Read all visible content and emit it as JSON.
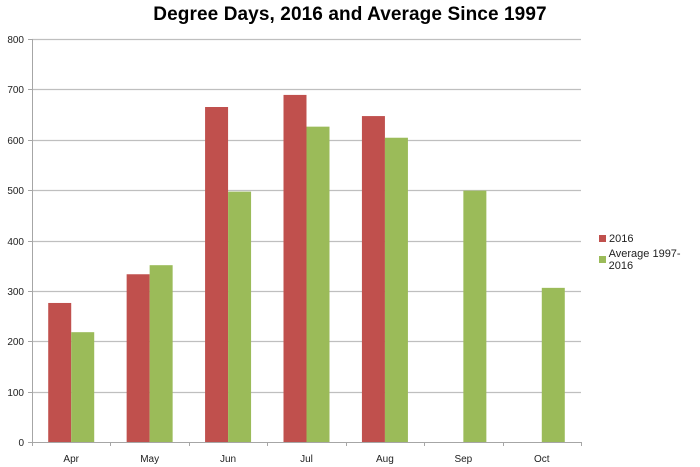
{
  "chart_data": {
    "type": "bar",
    "title": "Degree Days, 2016 and Average Since 1997",
    "xlabel": "",
    "ylabel": "",
    "categories": [
      "Apr",
      "May",
      "Jun",
      "Jul",
      "Aug",
      "Sep",
      "Oct"
    ],
    "series": [
      {
        "name": "2016",
        "color": "#C0504D",
        "values": [
          276,
          333,
          665,
          689,
          647,
          null,
          null
        ]
      },
      {
        "name": "Average 1997-2016",
        "color": "#9BBB59",
        "values": [
          218,
          351,
          497,
          626,
          604,
          499,
          306
        ]
      }
    ],
    "ylim": [
      0,
      800
    ],
    "yticks": [
      0,
      100,
      200,
      300,
      400,
      500,
      600,
      700,
      800
    ],
    "grid": true,
    "legend_position": "right"
  },
  "legend": {
    "items": [
      {
        "label": "2016",
        "color": "#C0504D"
      },
      {
        "label": "Average 1997-2016",
        "color": "#9BBB59"
      }
    ]
  }
}
